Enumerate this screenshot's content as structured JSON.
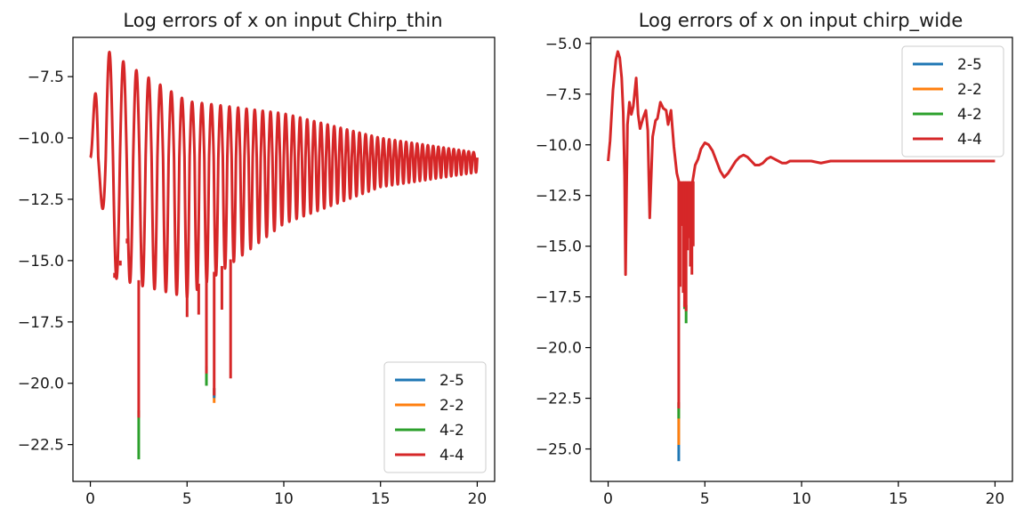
{
  "chart_data": [
    {
      "type": "line",
      "title": "Log errors of x on input Chirp_thin",
      "xlabel": "",
      "ylabel": "",
      "xlim": [
        -0.9,
        20.9
      ],
      "ylim": [
        -24.0,
        -5.9
      ],
      "xticks": [
        0,
        5,
        10,
        15,
        20
      ],
      "xtick_labels": [
        "0",
        "5",
        "10",
        "15",
        "20"
      ],
      "yticks": [
        -7.5,
        -10.0,
        -12.5,
        -15.0,
        -17.5,
        -20.0,
        -22.5
      ],
      "ytick_labels": [
        "−7.5",
        "−10.0",
        "−12.5",
        "−15.0",
        "−17.5",
        "−20.0",
        "−22.5"
      ],
      "grid": false,
      "legend_position": "lower-right",
      "signal": {
        "kind": "chirp",
        "x_range": [
          0,
          20
        ],
        "center": [
          -10.8,
          -10.8
        ],
        "peak_envelope": {
          "x": [
            0,
            0.4,
            1.0,
            2.3,
            5.0,
            10.0,
            15.0,
            20.0
          ],
          "y": [
            -10.8,
            -6.4,
            -6.5,
            -7.2,
            -8.5,
            -9.0,
            -10.0,
            -10.6
          ]
        },
        "trough_envelope": {
          "x": [
            0,
            0.5,
            1.2,
            2.5,
            5.0,
            10.0,
            15.0,
            20.0
          ],
          "y": [
            -10.8,
            -12.3,
            -15.7,
            -16.0,
            -16.5,
            -13.5,
            -12.0,
            -11.4
          ]
        },
        "phase_rate": 2.4,
        "phase_accel": 0.14
      },
      "spikes": [
        {
          "x": 1.25,
          "y": -15.7
        },
        {
          "x": 1.55,
          "y": -15.2
        },
        {
          "x": 1.9,
          "y": -14.3
        },
        {
          "x": 2.5,
          "y": -21.4
        },
        {
          "x": 5.0,
          "y": -17.3
        },
        {
          "x": 5.6,
          "y": -17.2
        },
        {
          "x": 6.0,
          "y": -19.6
        },
        {
          "x": 6.4,
          "y": -20.5
        },
        {
          "x": 6.8,
          "y": -17.0
        },
        {
          "x": 7.25,
          "y": -19.8
        }
      ],
      "spike_extensions": [
        {
          "x": 2.5,
          "name": "4-2",
          "y": -23.1
        },
        {
          "x": 6.0,
          "name": "4-2",
          "y": -20.1
        },
        {
          "x": 6.4,
          "name": "2-2",
          "y": -20.8
        },
        {
          "x": 6.4,
          "name": "2-5",
          "y": -20.6
        }
      ],
      "series": [
        {
          "name": "2-5",
          "color": "#1f77b4"
        },
        {
          "name": "2-2",
          "color": "#ff7f0e"
        },
        {
          "name": "4-2",
          "color": "#2ca02c"
        },
        {
          "name": "4-4",
          "color": "#d62728"
        }
      ]
    },
    {
      "type": "line",
      "title": "Log errors of x on input chirp_wide",
      "xlabel": "",
      "ylabel": "",
      "xlim": [
        -0.9,
        20.9
      ],
      "ylim": [
        -26.6,
        -4.7
      ],
      "xticks": [
        0,
        5,
        10,
        15,
        20
      ],
      "xtick_labels": [
        "0",
        "5",
        "10",
        "15",
        "20"
      ],
      "yticks": [
        -5.0,
        -7.5,
        -10.0,
        -12.5,
        -15.0,
        -17.5,
        -20.0,
        -22.5,
        -25.0
      ],
      "ytick_labels": [
        "−5.0",
        "−7.5",
        "−10.0",
        "−12.5",
        "−15.0",
        "−17.5",
        "−20.0",
        "−22.5",
        "−25.0"
      ],
      "grid": false,
      "legend_position": "upper-right",
      "line": {
        "x": [
          0,
          0.1,
          0.25,
          0.4,
          0.5,
          0.6,
          0.7,
          0.78,
          0.85,
          0.9,
          0.95,
          1.0,
          1.1,
          1.2,
          1.3,
          1.45,
          1.55,
          1.65,
          1.8,
          1.95,
          2.05,
          2.15,
          2.3,
          2.45,
          2.55,
          2.7,
          2.85,
          3.0,
          3.1,
          3.25,
          3.4,
          3.55,
          3.7,
          3.8,
          3.9,
          4.0,
          4.1,
          4.2,
          4.35,
          4.5,
          4.65,
          4.8,
          5.0,
          5.2,
          5.4,
          5.6,
          5.8,
          6.0,
          6.2,
          6.4,
          6.6,
          6.8,
          7.0,
          7.2,
          7.4,
          7.6,
          7.8,
          8.0,
          8.2,
          8.4,
          8.6,
          8.8,
          9.0,
          9.2,
          9.4,
          9.6,
          9.8,
          10.0,
          10.5,
          11.0,
          11.5,
          12.0,
          13.0,
          14.0,
          15.0,
          16.0,
          17.0,
          18.0,
          19.0,
          20.0
        ],
        "y": [
          -10.8,
          -9.8,
          -7.3,
          -5.8,
          -5.4,
          -5.7,
          -6.7,
          -8.4,
          -11.5,
          -16.4,
          -12.5,
          -9.0,
          -7.9,
          -8.5,
          -8.1,
          -6.7,
          -8.5,
          -9.2,
          -8.7,
          -8.3,
          -9.3,
          -13.6,
          -9.6,
          -8.8,
          -8.7,
          -7.9,
          -8.2,
          -8.3,
          -9.0,
          -8.3,
          -10.1,
          -11.4,
          -12.0,
          -12.2,
          -12.4,
          -12.2,
          -11.9,
          -11.9,
          -11.9,
          -11.0,
          -10.7,
          -10.2,
          -9.9,
          -10.0,
          -10.3,
          -10.8,
          -11.3,
          -11.6,
          -11.4,
          -11.1,
          -10.8,
          -10.6,
          -10.5,
          -10.6,
          -10.8,
          -11.0,
          -11.0,
          -10.9,
          -10.7,
          -10.6,
          -10.7,
          -10.8,
          -10.9,
          -10.9,
          -10.8,
          -10.8,
          -10.8,
          -10.8,
          -10.8,
          -10.9,
          -10.8,
          -10.8,
          -10.8,
          -10.8,
          -10.8,
          -10.8,
          -10.8,
          -10.8,
          -10.8,
          -10.8
        ]
      },
      "spikes": [
        {
          "x": 3.65,
          "y": -23.0
        },
        {
          "x": 3.72,
          "y": -17.0
        },
        {
          "x": 3.8,
          "y": -14.0
        },
        {
          "x": 3.88,
          "y": -17.3
        },
        {
          "x": 3.95,
          "y": -18.0
        },
        {
          "x": 4.03,
          "y": -18.2
        },
        {
          "x": 4.1,
          "y": -15.2
        },
        {
          "x": 4.18,
          "y": -14.6
        },
        {
          "x": 4.25,
          "y": -16.0
        },
        {
          "x": 4.33,
          "y": -16.4
        },
        {
          "x": 4.4,
          "y": -15.0
        }
      ],
      "spike_extensions": [
        {
          "x": 3.65,
          "name": "2-5",
          "y": -25.6
        },
        {
          "x": 3.65,
          "name": "2-2",
          "y": -24.8
        },
        {
          "x": 3.65,
          "name": "4-2",
          "y": -23.5
        },
        {
          "x": 3.95,
          "name": "4-2",
          "y": -18.1
        },
        {
          "x": 4.03,
          "name": "4-2",
          "y": -18.8
        }
      ],
      "series": [
        {
          "name": "2-5",
          "color": "#1f77b4"
        },
        {
          "name": "2-2",
          "color": "#ff7f0e"
        },
        {
          "name": "4-2",
          "color": "#2ca02c"
        },
        {
          "name": "4-4",
          "color": "#d62728"
        }
      ]
    }
  ]
}
